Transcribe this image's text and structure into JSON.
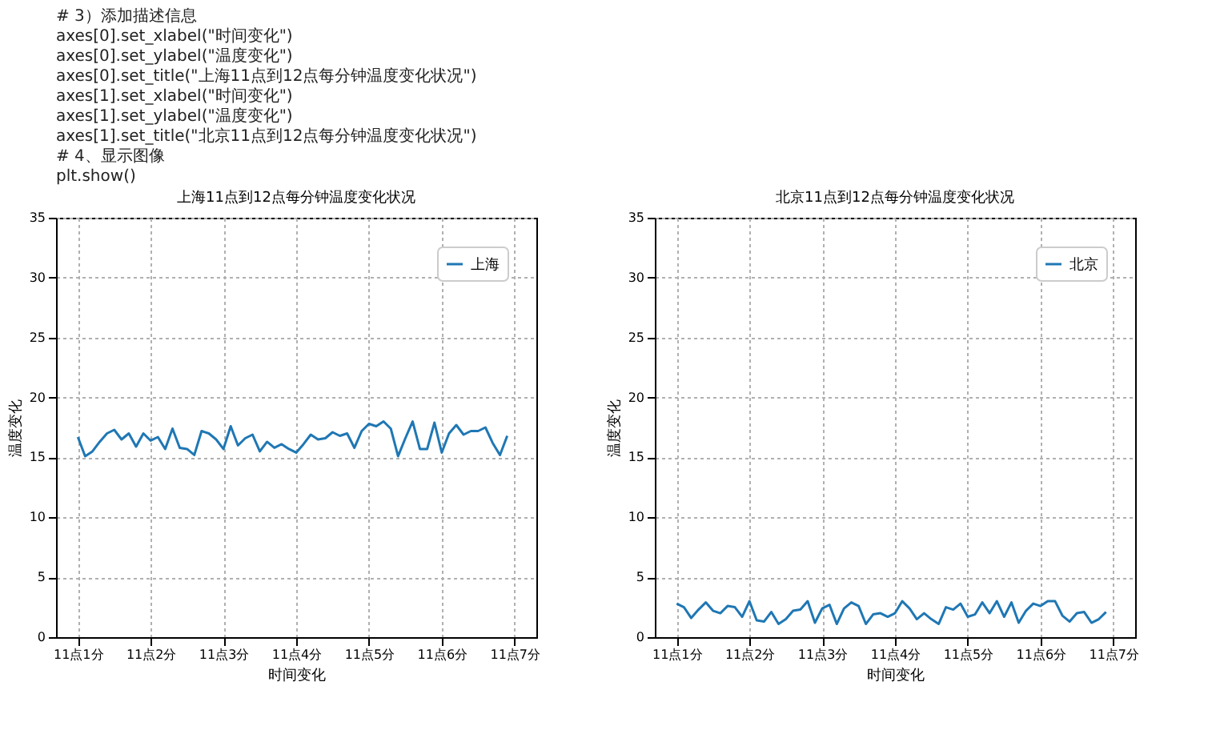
{
  "chart_data": [
    {
      "type": "line",
      "title": "上海11点到12点每分钟温度变化状况",
      "xlabel": "时间变化",
      "ylabel": "温度变化",
      "annotations": [
        "# 3）添加描述信息",
        "axes[0].set_xlabel(\"时间变化\")",
        "axes[0].set_ylabel(\"温度变化\")",
        "axes[0].set_title(\"上海11点到12点每分钟温度变化状况\")",
        "axes[1].set_xlabel(\"时间变化\")",
        "axes[1].set_ylabel(\"温度变化\")",
        "axes[1].set_title(\"北京11点到12点每分钟温度变化状况\")",
        "# 4、显示图像",
        "plt.show()"
      ],
      "categories": [
        "11点1分",
        null,
        null,
        null,
        null,
        null,
        null,
        null,
        null,
        null,
        "11点2分",
        null,
        null,
        null,
        null,
        null,
        null,
        null,
        null,
        null,
        "11点3分",
        null,
        null,
        null,
        null,
        null,
        null,
        null,
        null,
        null,
        "11点4分",
        null,
        null,
        null,
        null,
        null,
        null,
        null,
        null,
        null,
        "11点5分",
        null,
        null,
        null,
        null,
        null,
        null,
        null,
        null,
        null,
        "11点6分",
        null,
        null,
        null,
        null,
        null,
        null,
        null,
        null,
        null,
        "11点7分"
      ],
      "series": [
        {
          "name": "上海",
          "color": "#1f77b4",
          "values": [
            16.7,
            15.1,
            15.5,
            16.3,
            17.0,
            17.3,
            16.5,
            17.0,
            15.9,
            17.0,
            16.4,
            16.7,
            15.7,
            17.4,
            15.8,
            15.7,
            15.2,
            17.2,
            17.0,
            16.5,
            15.7,
            17.6,
            16.0,
            16.6,
            16.9,
            15.5,
            16.3,
            15.8,
            16.1,
            15.7,
            15.4,
            16.1,
            16.9,
            16.5,
            16.6,
            17.1,
            16.8,
            17.0,
            15.8,
            17.2,
            17.8,
            17.6,
            18.0,
            17.4,
            15.1,
            16.6,
            18.0,
            15.7,
            15.7,
            17.9,
            15.4,
            17.0,
            17.7,
            16.9,
            17.2,
            17.2,
            17.5,
            16.2,
            15.2,
            16.8,
            null
          ]
        }
      ],
      "ylim": [
        0,
        35
      ],
      "yticks": [
        0,
        5,
        10,
        15,
        20,
        25,
        30,
        35
      ],
      "grid": true,
      "legend": "top right",
      "marker": "none",
      "line_style": "solid"
    },
    {
      "type": "line",
      "title": "北京11点到12点每分钟温度变化状况",
      "xlabel": "时间变化",
      "ylabel": "温度变化",
      "categories": [
        "11点1分",
        null,
        null,
        null,
        null,
        null,
        null,
        null,
        null,
        null,
        "11点2分",
        null,
        null,
        null,
        null,
        null,
        null,
        null,
        null,
        null,
        "11点3分",
        null,
        null,
        null,
        null,
        null,
        null,
        null,
        null,
        null,
        "11点4分",
        null,
        null,
        null,
        null,
        null,
        null,
        null,
        null,
        null,
        "11点5分",
        null,
        null,
        null,
        null,
        null,
        null,
        null,
        null,
        null,
        "11点6分",
        null,
        null,
        null,
        null,
        null,
        null,
        null,
        null,
        null,
        "11点7分"
      ],
      "series": [
        {
          "name": "北京",
          "color": "#1f77b4",
          "values": [
            2.8,
            2.5,
            1.6,
            2.3,
            2.9,
            2.2,
            2.0,
            2.6,
            2.5,
            1.7,
            3.0,
            1.4,
            1.3,
            2.1,
            1.1,
            1.5,
            2.2,
            2.3,
            3.0,
            1.2,
            2.4,
            2.7,
            1.1,
            2.4,
            2.9,
            2.6,
            1.1,
            1.9,
            2.0,
            1.7,
            2.0,
            3.0,
            2.4,
            1.5,
            2.0,
            1.5,
            1.1,
            2.5,
            2.3,
            2.8,
            1.7,
            1.9,
            2.9,
            2.0,
            3.0,
            1.7,
            2.9,
            1.2,
            2.2,
            2.8,
            2.6,
            3.0,
            3.0,
            1.8,
            1.3,
            2.0,
            2.1,
            1.2,
            1.5,
            2.1,
            null
          ]
        }
      ],
      "ylim": [
        0,
        35
      ],
      "yticks": [
        0,
        5,
        10,
        15,
        20,
        25,
        30,
        35
      ],
      "grid": true,
      "legend": "top right",
      "marker": "none",
      "line_style": "solid"
    }
  ]
}
